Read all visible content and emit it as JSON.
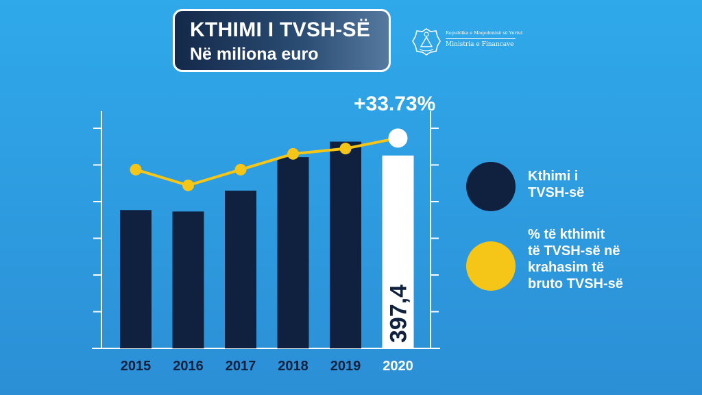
{
  "header": {
    "title": "KTHIMI I TVSH-SË",
    "subtitle": "Në miliona euro"
  },
  "ministry": {
    "line1": "Republika e Maqedonisë së Veriut",
    "line2": "Ministria e Financave",
    "icon": "coat-of-arms-icon"
  },
  "colors": {
    "bar": "#10213f",
    "bar_highlight": "#ffffff",
    "line": "#f5c518",
    "axis": "#ffffff"
  },
  "chart_data": {
    "type": "bar",
    "categories": [
      "2015",
      "2016",
      "2017",
      "2018",
      "2019",
      "2020"
    ],
    "series": [
      {
        "name": "Kthimi i TVSH-së",
        "type": "bar",
        "values": [
          285,
          282,
          325,
          394,
          426,
          397.4
        ]
      },
      {
        "name": "% të kthimit të TVSH-së në krahasim të bruto TVSH-së",
        "type": "line",
        "values": [
          34,
          31,
          34,
          37,
          38,
          40
        ]
      }
    ],
    "data_labels": [
      {
        "category": "2020",
        "text": "397,4"
      }
    ],
    "annotations": [
      {
        "category": "2020",
        "text": "+33.73%"
      }
    ],
    "highlight_category": "2020",
    "ylim": [
      0,
      520
    ],
    "ylim_secondary": [
      0,
      48
    ],
    "legend": {
      "position": "right",
      "items": [
        {
          "lines": [
            "Kthimi i",
            "TVSH-së"
          ],
          "color": "#10213f"
        },
        {
          "lines": [
            "% të kthimit",
            "të TVSH-së në",
            "krahasim të",
            "bruto TVSH-së"
          ],
          "color": "#f5c518"
        }
      ]
    },
    "grid": false
  }
}
